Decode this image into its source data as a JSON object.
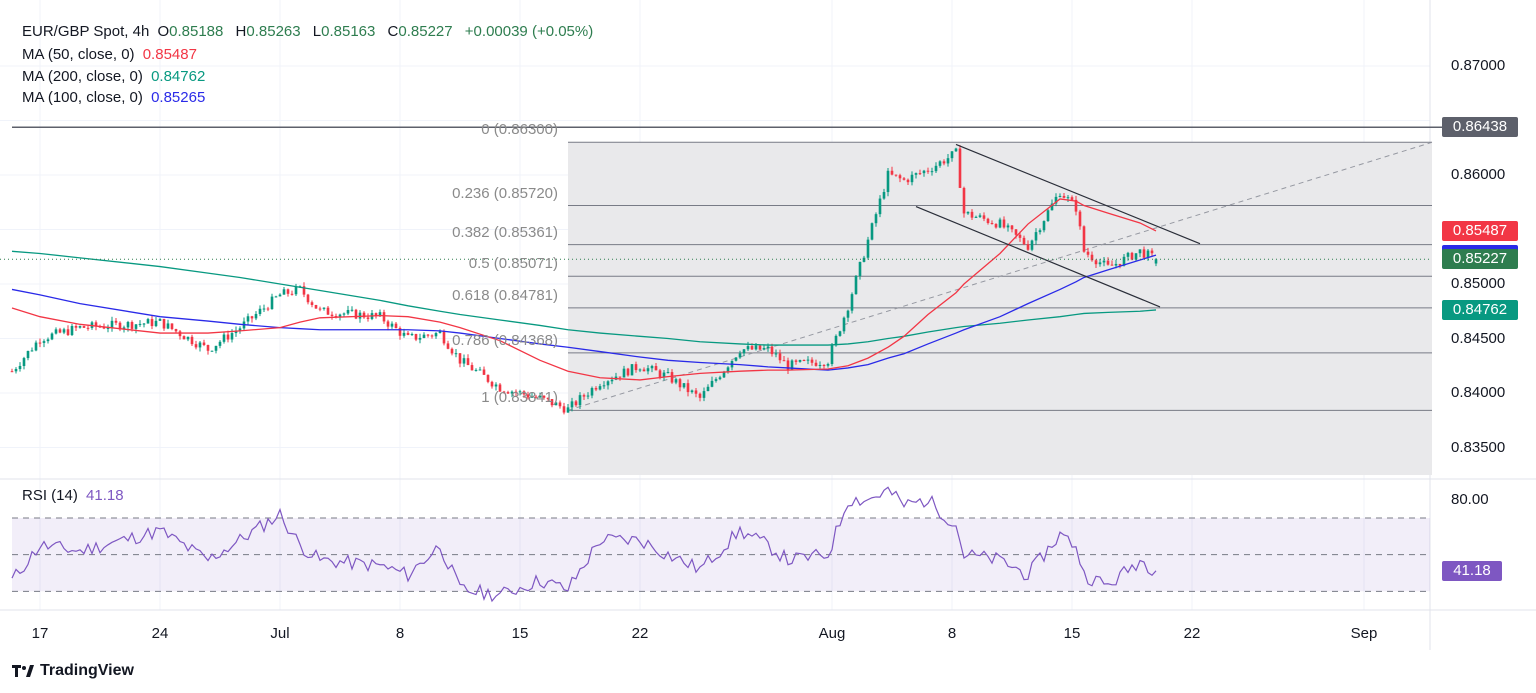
{
  "header": {
    "symbol": "EUR/GBP Spot, 4h",
    "open_label": "O",
    "open": "0.85188",
    "high_label": "H",
    "high": "0.85263",
    "low_label": "L",
    "low": "0.85163",
    "close_label": "C",
    "close": "0.85227",
    "change": "+0.00039 (+0.05%)"
  },
  "indicators": [
    {
      "label": "MA (50, close, 0)",
      "value": "0.85487",
      "color": "#f23645"
    },
    {
      "label": "MA (200, close, 0)",
      "value": "0.84762",
      "color": "#089981"
    },
    {
      "label": "MA (100, close, 0)",
      "value": "0.85265",
      "color": "#2a2ae8"
    }
  ],
  "rsi": {
    "label": "RSI (14)",
    "value": "41.18",
    "color": "#7e57c2",
    "tick": "80.00",
    "levels": [
      70,
      50,
      30
    ]
  },
  "price_axis": [
    "0.87000",
    "0.86000",
    "0.85000",
    "0.84500",
    "0.84000",
    "0.83500"
  ],
  "price_tags": [
    {
      "value": "0.86438",
      "color": "#5d606b"
    },
    {
      "value": "0.85487",
      "color": "#f23645"
    },
    {
      "value": "0.85265",
      "color": "#2a2ae8"
    },
    {
      "value": "0.85227",
      "color": "#2e7d4f"
    },
    {
      "value": "0.84762",
      "color": "#089981"
    }
  ],
  "fib_levels": [
    {
      "label": "0 (0.86300)",
      "price": 0.863
    },
    {
      "label": "0.236 (0.85720)",
      "price": 0.8572
    },
    {
      "label": "0.382 (0.85361)",
      "price": 0.85361
    },
    {
      "label": "0.5 (0.85071)",
      "price": 0.85071
    },
    {
      "label": "0.618 (0.84781)",
      "price": 0.84781
    },
    {
      "label": "0.786 (0.84368)",
      "price": 0.84368
    },
    {
      "label": "1 (0.83841)",
      "price": 0.83841
    }
  ],
  "time_axis": [
    {
      "label": "17",
      "t": "06-17 00:00"
    },
    {
      "label": "24",
      "t": "06-24 00:00"
    },
    {
      "label": "Jul",
      "t": "07-01 00:00"
    },
    {
      "label": "8",
      "t": "07-08 00:00"
    },
    {
      "label": "15",
      "t": "07-15 00:00"
    },
    {
      "label": "22",
      "t": "07-22 00:00"
    },
    {
      "label": "Aug",
      "t": "08-01 00:00"
    },
    {
      "label": "8",
      "t": "08-08 00:00"
    },
    {
      "label": "15",
      "t": "08-15 00:00"
    },
    {
      "label": "22",
      "t": "08-22 00:00"
    },
    {
      "label": "Sep",
      "t": "09-02 04:00"
    }
  ],
  "branding": "TradingView",
  "chart_data": {
    "type": "candlestick",
    "symbol": "EUR/GBP",
    "interval": "4h",
    "ylim": [
      0.8325,
      0.8735
    ],
    "rsi_ylim": [
      20,
      90
    ],
    "horizontal_line": 0.86438,
    "last_price": 0.85227,
    "colors": {
      "up": "#089981",
      "down": "#f23645"
    },
    "series": [
      {
        "t": "06-13 20:00",
        "close": 0.842,
        "ma50": 0.8478,
        "ma100": 0.8495,
        "ma200": 0.853,
        "rsi": 36
      },
      {
        "t": "06-17 00:00",
        "close": 0.845,
        "ma50": 0.847,
        "ma100": 0.849,
        "ma200": 0.8528,
        "rsi": 55
      },
      {
        "t": "06-18 16:00",
        "close": 0.846,
        "ma50": 0.8463,
        "ma100": 0.8482,
        "ma200": 0.8524,
        "rsi": 52
      },
      {
        "t": "06-24 00:00",
        "close": 0.8465,
        "ma50": 0.8455,
        "ma100": 0.847,
        "ma200": 0.8516,
        "rsi": 63
      },
      {
        "t": "06-26 00:00",
        "close": 0.844,
        "ma50": 0.8455,
        "ma100": 0.8466,
        "ma200": 0.851,
        "rsi": 47
      },
      {
        "t": "06-27 08:00",
        "close": 0.846,
        "ma50": 0.8457,
        "ma100": 0.8463,
        "ma200": 0.8506,
        "rsi": 58
      },
      {
        "t": "07-01 00:00",
        "close": 0.849,
        "ma50": 0.846,
        "ma100": 0.846,
        "ma200": 0.85,
        "rsi": 72
      },
      {
        "t": "07-01 20:00",
        "close": 0.8495,
        "ma50": 0.8465,
        "ma100": 0.8459,
        "ma200": 0.8497,
        "rsi": 55
      },
      {
        "t": "07-02 16:00",
        "close": 0.8475,
        "ma50": 0.8469,
        "ma100": 0.8458,
        "ma200": 0.8494,
        "rsi": 47
      },
      {
        "t": "07-05 04:00",
        "close": 0.847,
        "ma50": 0.8471,
        "ma100": 0.8458,
        "ma200": 0.8485,
        "rsi": 44
      },
      {
        "t": "07-08 08:00",
        "close": 0.845,
        "ma50": 0.847,
        "ma100": 0.8458,
        "ma200": 0.848,
        "rsi": 39
      },
      {
        "t": "07-09 16:00",
        "close": 0.8455,
        "ma50": 0.8465,
        "ma100": 0.8457,
        "ma200": 0.8475,
        "rsi": 55
      },
      {
        "t": "07-10 12:00",
        "close": 0.843,
        "ma50": 0.846,
        "ma100": 0.8455,
        "ma200": 0.8472,
        "rsi": 31
      },
      {
        "t": "07-12 04:00",
        "close": 0.8405,
        "ma50": 0.8448,
        "ma100": 0.845,
        "ma200": 0.8467,
        "rsi": 28
      },
      {
        "t": "07-15 20:00",
        "close": 0.8395,
        "ma50": 0.843,
        "ma100": 0.8445,
        "ma200": 0.8462,
        "rsi": 36
      },
      {
        "t": "07-17 00:00",
        "close": 0.8385,
        "ma50": 0.842,
        "ma100": 0.8442,
        "ma200": 0.8458,
        "rsi": 31
      },
      {
        "t": "07-18 08:00",
        "close": 0.841,
        "ma50": 0.8414,
        "ma100": 0.8438,
        "ma200": 0.8455,
        "rsi": 58
      },
      {
        "t": "07-22 00:00",
        "close": 0.8425,
        "ma50": 0.8412,
        "ma100": 0.8433,
        "ma200": 0.8452,
        "rsi": 58
      },
      {
        "t": "07-23 04:00",
        "close": 0.8415,
        "ma50": 0.8415,
        "ma100": 0.843,
        "ma200": 0.845,
        "rsi": 50
      },
      {
        "t": "07-24 12:00",
        "close": 0.8395,
        "ma50": 0.8418,
        "ma100": 0.8428,
        "ma200": 0.8447,
        "rsi": 42
      },
      {
        "t": "07-26 04:00",
        "close": 0.844,
        "ma50": 0.842,
        "ma100": 0.8426,
        "ma200": 0.8445,
        "rsi": 63
      },
      {
        "t": "07-29 08:00",
        "close": 0.844,
        "ma50": 0.8421,
        "ma100": 0.8424,
        "ma200": 0.8444,
        "rsi": 55
      },
      {
        "t": "07-30 04:00",
        "close": 0.8425,
        "ma50": 0.8421,
        "ma100": 0.8423,
        "ma200": 0.8444,
        "rsi": 47
      },
      {
        "t": "07-31 20:00",
        "close": 0.843,
        "ma50": 0.8422,
        "ma100": 0.8421,
        "ma200": 0.8444,
        "rsi": 50
      },
      {
        "t": "08-01 16:00",
        "close": 0.848,
        "ma50": 0.8425,
        "ma100": 0.8423,
        "ma200": 0.8445,
        "rsi": 80
      },
      {
        "t": "08-02 12:00",
        "close": 0.854,
        "ma50": 0.8432,
        "ma100": 0.8426,
        "ma200": 0.8447,
        "rsi": 80
      },
      {
        "t": "08-05 08:00",
        "close": 0.86,
        "ma50": 0.8442,
        "ma100": 0.8432,
        "ma200": 0.845,
        "rsi": 85
      },
      {
        "t": "08-06 00:00",
        "close": 0.8595,
        "ma50": 0.8452,
        "ma100": 0.8436,
        "ma200": 0.8452,
        "rsi": 77
      },
      {
        "t": "08-07 00:00",
        "close": 0.8605,
        "ma50": 0.8472,
        "ma100": 0.8445,
        "ma200": 0.8456,
        "rsi": 80
      },
      {
        "t": "08-08 04:00",
        "close": 0.862,
        "ma50": 0.8492,
        "ma100": 0.8455,
        "ma200": 0.846,
        "rsi": 66
      },
      {
        "t": "08-08 12:00",
        "close": 0.8565,
        "ma50": 0.85,
        "ma100": 0.8458,
        "ma200": 0.8461,
        "rsi": 50
      },
      {
        "t": "08-12 00:00",
        "close": 0.8555,
        "ma50": 0.8528,
        "ma100": 0.847,
        "ma200": 0.8464,
        "rsi": 47
      },
      {
        "t": "08-13 04:00",
        "close": 0.8535,
        "ma50": 0.8555,
        "ma100": 0.8482,
        "ma200": 0.8467,
        "rsi": 39
      },
      {
        "t": "08-14 12:00",
        "close": 0.8585,
        "ma50": 0.8578,
        "ma100": 0.8495,
        "ma200": 0.847,
        "rsi": 61
      },
      {
        "t": "08-15 04:00",
        "close": 0.857,
        "ma50": 0.8576,
        "ma100": 0.8502,
        "ma200": 0.8472,
        "rsi": 55
      },
      {
        "t": "08-15 12:00",
        "close": 0.853,
        "ma50": 0.8572,
        "ma100": 0.8506,
        "ma200": 0.8473,
        "rsi": 39
      },
      {
        "t": "08-16 12:00",
        "close": 0.8515,
        "ma50": 0.8565,
        "ma100": 0.8513,
        "ma200": 0.8474,
        "rsi": 33
      },
      {
        "t": "08-19 20:00",
        "close": 0.853,
        "ma50": 0.8556,
        "ma100": 0.8522,
        "ma200": 0.8475,
        "rsi": 47
      },
      {
        "t": "08-20 12:00",
        "close": 0.85227,
        "ma50": 0.85487,
        "ma100": 0.85265,
        "ma200": 0.84762,
        "rsi": 41.18
      }
    ],
    "fib_range": {
      "start": "07-17 00:00",
      "end": "09-05 00:00",
      "high": 0.863,
      "low": 0.83841
    },
    "trendlines": [
      {
        "from": [
          "08-08 04:00",
          0.8628
        ],
        "to": [
          "08-22 08:00",
          0.8537
        ]
      },
      {
        "from": [
          "08-06 12:00",
          0.8571
        ],
        "to": [
          "08-20 16:00",
          0.8479
        ]
      }
    ]
  }
}
